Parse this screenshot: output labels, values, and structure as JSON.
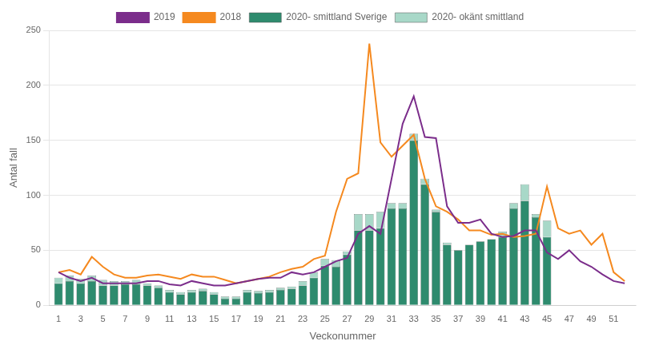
{
  "chart_data": {
    "type": "bar",
    "stacked": true,
    "grid": "y",
    "legend": "top",
    "xlabel": "Veckonummer",
    "ylabel": "Antal fall",
    "x": [
      1,
      2,
      3,
      4,
      5,
      6,
      7,
      8,
      9,
      10,
      11,
      12,
      13,
      14,
      15,
      16,
      17,
      18,
      19,
      20,
      21,
      22,
      23,
      24,
      25,
      26,
      27,
      28,
      29,
      30,
      31,
      32,
      33,
      34,
      35,
      36,
      37,
      38,
      39,
      40,
      41,
      42,
      43,
      44,
      45,
      46,
      47,
      48,
      49,
      50,
      51,
      52
    ],
    "xlim": [
      0.2,
      53
    ],
    "xticks": [
      1,
      3,
      5,
      7,
      9,
      11,
      13,
      15,
      17,
      19,
      21,
      23,
      25,
      27,
      29,
      31,
      33,
      35,
      37,
      39,
      41,
      43,
      45,
      47,
      49,
      51
    ],
    "ylim": [
      0,
      250
    ],
    "yticks": [
      0,
      50,
      100,
      150,
      200,
      250
    ],
    "series": [
      {
        "name": "2020- smittland Sverige",
        "type": "bar",
        "color": "#2e8b6e",
        "values": [
          20,
          22,
          20,
          22,
          18,
          18,
          19,
          19,
          18,
          16,
          12,
          10,
          12,
          13,
          10,
          6,
          6,
          12,
          11,
          12,
          14,
          15,
          18,
          25,
          36,
          35,
          46,
          68,
          68,
          70,
          88,
          88,
          150,
          110,
          85,
          55,
          50,
          55,
          58,
          60,
          62,
          88,
          95,
          80,
          62,
          null,
          null,
          null,
          null,
          null,
          null,
          null
        ]
      },
      {
        "name": "2020- okänt smittland",
        "type": "bar",
        "color": "#a8d8c8",
        "values": [
          5,
          5,
          4,
          5,
          5,
          4,
          3,
          4,
          2,
          2,
          2,
          2,
          2,
          2,
          2,
          2,
          2,
          2,
          2,
          2,
          2,
          2,
          4,
          5,
          6,
          6,
          3,
          15,
          15,
          15,
          5,
          5,
          6,
          5,
          2,
          2,
          0,
          0,
          0,
          0,
          5,
          5,
          15,
          3,
          15,
          null,
          null,
          null,
          null,
          null,
          null,
          null
        ]
      },
      {
        "name": "2019",
        "type": "line",
        "color": "#7b2d8b",
        "values": [
          30,
          25,
          22,
          25,
          20,
          20,
          20,
          20,
          22,
          22,
          19,
          18,
          22,
          20,
          18,
          18,
          20,
          22,
          24,
          25,
          25,
          30,
          28,
          30,
          35,
          40,
          43,
          65,
          72,
          65,
          115,
          165,
          190,
          153,
          152,
          90,
          75,
          75,
          78,
          65,
          62,
          63,
          68,
          68,
          48,
          42,
          50,
          40,
          35,
          28,
          22,
          20
        ]
      },
      {
        "name": "2018",
        "type": "line",
        "color": "#f5891f",
        "values": [
          30,
          32,
          28,
          44,
          35,
          28,
          25,
          25,
          27,
          28,
          26,
          24,
          28,
          26,
          26,
          23,
          20,
          22,
          24,
          26,
          30,
          33,
          35,
          42,
          45,
          85,
          115,
          120,
          238,
          148,
          135,
          145,
          155,
          115,
          90,
          85,
          78,
          68,
          68,
          64,
          65,
          62,
          63,
          65,
          108,
          70,
          65,
          68,
          55,
          65,
          30,
          22
        ]
      }
    ]
  }
}
